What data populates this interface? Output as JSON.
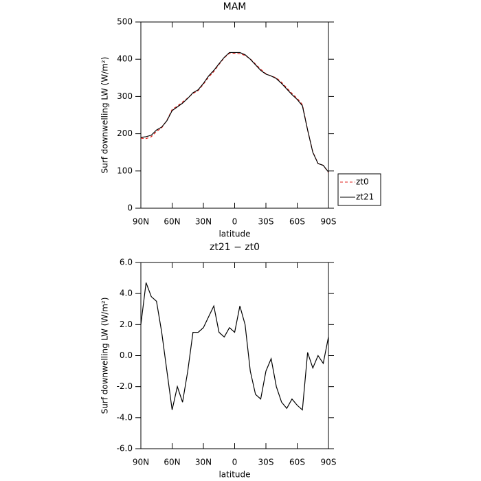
{
  "chart_data": [
    {
      "type": "line",
      "title": "MAM",
      "xlabel": "latitude",
      "ylabel": "Surf downwelling LW (W/m²)",
      "x": [
        90,
        85,
        80,
        75,
        70,
        65,
        60,
        55,
        50,
        45,
        40,
        35,
        30,
        25,
        20,
        15,
        10,
        5,
        0,
        -5,
        -10,
        -15,
        -20,
        -25,
        -30,
        -35,
        -40,
        -45,
        -50,
        -55,
        -60,
        -65,
        -70,
        -75,
        -80,
        -85,
        -90
      ],
      "xlim": [
        90,
        -90
      ],
      "xticks": [
        {
          "value": 90,
          "label": "90N"
        },
        {
          "value": 60,
          "label": "60N"
        },
        {
          "value": 30,
          "label": "30N"
        },
        0,
        {
          "value": -30,
          "label": "30S"
        },
        {
          "value": -60,
          "label": "60S"
        },
        {
          "value": -90,
          "label": "90S"
        }
      ],
      "ylim": [
        0,
        500
      ],
      "yticks": [
        0,
        100,
        200,
        300,
        400,
        500
      ],
      "legend": "right",
      "series": [
        {
          "name": "zt0",
          "color": "#e0201b",
          "dash": true,
          "values": [
            188,
            187,
            192,
            206,
            216,
            236,
            265,
            274,
            285,
            296,
            308,
            316,
            333,
            352,
            367,
            386,
            404,
            416,
            416,
            415,
            410,
            401,
            387,
            373,
            361,
            355,
            350,
            338,
            323,
            308,
            295,
            278,
            210,
            151,
            120,
            115,
            96
          ]
        },
        {
          "name": "zt21",
          "color": "#000000",
          "dash": false,
          "values": [
            190,
            192,
            196,
            210,
            218,
            235,
            262,
            272,
            282,
            295,
            310,
            318,
            335,
            355,
            370,
            388,
            405,
            418,
            418,
            418,
            412,
            400,
            385,
            370,
            360,
            355,
            348,
            335,
            320,
            305,
            292,
            275,
            210,
            150,
            120,
            115,
            97
          ]
        }
      ]
    },
    {
      "type": "line",
      "title": "zt21 − zt0",
      "xlabel": "latitude",
      "ylabel": "Surf downwelling LW (W/m²)",
      "x": [
        90,
        85,
        80,
        75,
        70,
        65,
        60,
        55,
        50,
        45,
        40,
        35,
        30,
        25,
        20,
        15,
        10,
        5,
        0,
        -5,
        -10,
        -15,
        -20,
        -25,
        -30,
        -35,
        -40,
        -45,
        -50,
        -55,
        -60,
        -65,
        -70,
        -75,
        -80,
        -85,
        -90
      ],
      "xlim": [
        90,
        -90
      ],
      "xticks": [
        {
          "value": 90,
          "label": "90N"
        },
        {
          "value": 60,
          "label": "60N"
        },
        {
          "value": 30,
          "label": "30N"
        },
        0,
        {
          "value": -30,
          "label": "30S"
        },
        {
          "value": -60,
          "label": "60S"
        },
        {
          "value": -90,
          "label": "90S"
        }
      ],
      "ylim": [
        -6,
        6
      ],
      "yticks": [
        {
          "value": -6,
          "label": "-6.0"
        },
        {
          "value": -4,
          "label": "-4.0"
        },
        {
          "value": -2,
          "label": "-2.0"
        },
        {
          "value": 0,
          "label": "0.0"
        },
        {
          "value": 2,
          "label": "2.0"
        },
        {
          "value": 4,
          "label": "4.0"
        },
        {
          "value": 6,
          "label": "6.0"
        }
      ],
      "series": [
        {
          "color": "#000000",
          "dash": false,
          "values": [
            2,
            4.7,
            3.8,
            3.5,
            1.5,
            -1,
            -3.5,
            -2,
            -3,
            -1,
            1.5,
            1.5,
            1.8,
            2.5,
            3.2,
            1.5,
            1.2,
            1.8,
            1.5,
            3.2,
            2,
            -1,
            -2.5,
            -2.8,
            -1,
            -0.2,
            -2,
            -3,
            -3.4,
            -2.8,
            -3.2,
            -3.5,
            0.2,
            -0.8,
            0,
            -0.5,
            1.2
          ]
        }
      ]
    }
  ]
}
